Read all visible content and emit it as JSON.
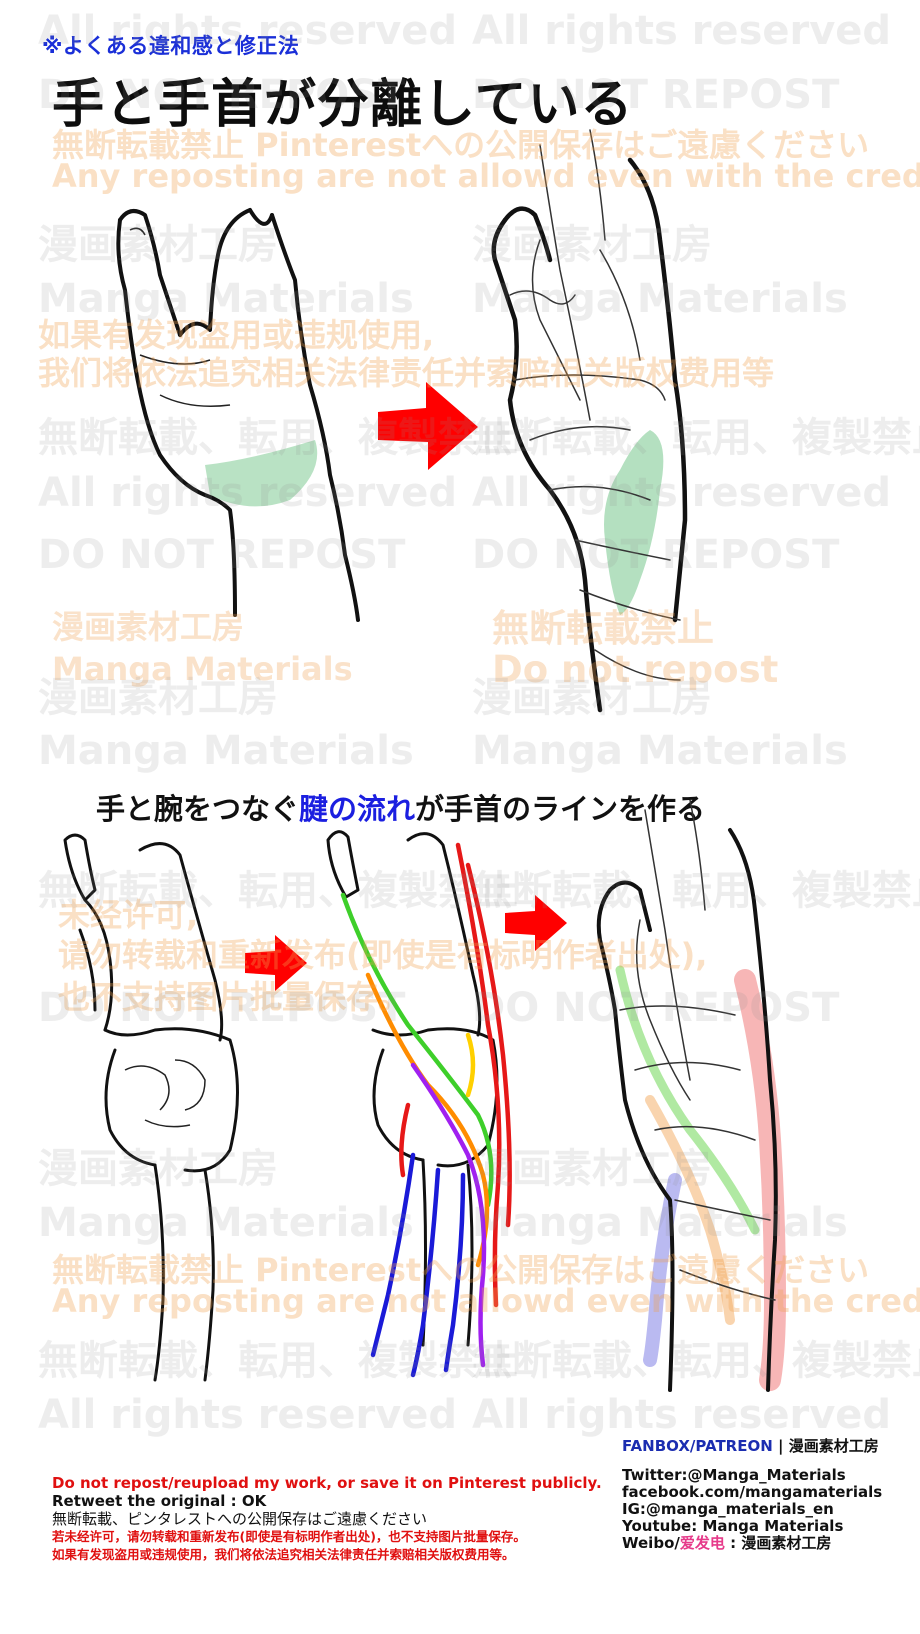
{
  "header": {
    "tag": "※よくある違和感と修正法",
    "title": "手と手首が分離している"
  },
  "subheading": {
    "prefix": "手と腕をつなぐ",
    "highlight": "腱の流れ",
    "suffix": "が手首のラインを作る"
  },
  "watermarks": {
    "rights": "All rights reserved",
    "repost": "DO NOT REPOST",
    "no_reprint": "無断転載、転用、複製禁止",
    "studio_jp": "漫画素材工房",
    "studio_en": "Manga Materials",
    "jp_pinterest": "無断転載禁止 Pinterestへの公開保存はご遠慮ください",
    "en_credit": "Any reposting are not allowd even with the credit.",
    "cn_legal_1": "如果有发现盗用或违规使用,",
    "cn_legal_2": "我们将依法追究相关法律责任并索赔相关版权费用等",
    "jp_forbid": "無断転載禁止",
    "do_not_repost": "Do not repost",
    "cn_unauth_1": "未经许可,",
    "cn_unauth_2": "请勿转载和重新发布(即使是有标明作者出处),",
    "cn_unauth_3": "也不支持图片批量保存。"
  },
  "footer_left": {
    "line1": "Do not repost/reupload my work, or save it on Pinterest publicly.",
    "line2": "Retweet the original : OK",
    "line3": "無断転載、ピンタレストへの公開保存はご遠慮ください",
    "line4": "若未经许可，请勿转载和重新发布(即使是有标明作者出处)，也不支持图片批量保存。",
    "line5": "如果有发现盗用或违规使用，我们将依法追究相关法律责任并索赔相关版权费用等。"
  },
  "footer_right": {
    "fanbox": "FANBOX/PATREON",
    "fanbox_sep": " | ",
    "fanbox_name": "漫画素材工房",
    "twitter": "Twitter:@Manga_Materials",
    "facebook": "facebook.com/mangamaterials",
    "ig": "IG:@manga_materials_en",
    "youtube": "Youtube: Manga Materials",
    "weibo_label": "Weibo/",
    "weibo_name": "爱发电",
    "weibo_suffix": " : 漫画素材工房"
  },
  "colors": {
    "tag_blue": "#1a2fd8",
    "highlight_blue": "#1b1fe0",
    "arrow_red": "#ff0000",
    "tendon_green": "#9bd4a8",
    "watermark_orange": "#f0a050"
  }
}
